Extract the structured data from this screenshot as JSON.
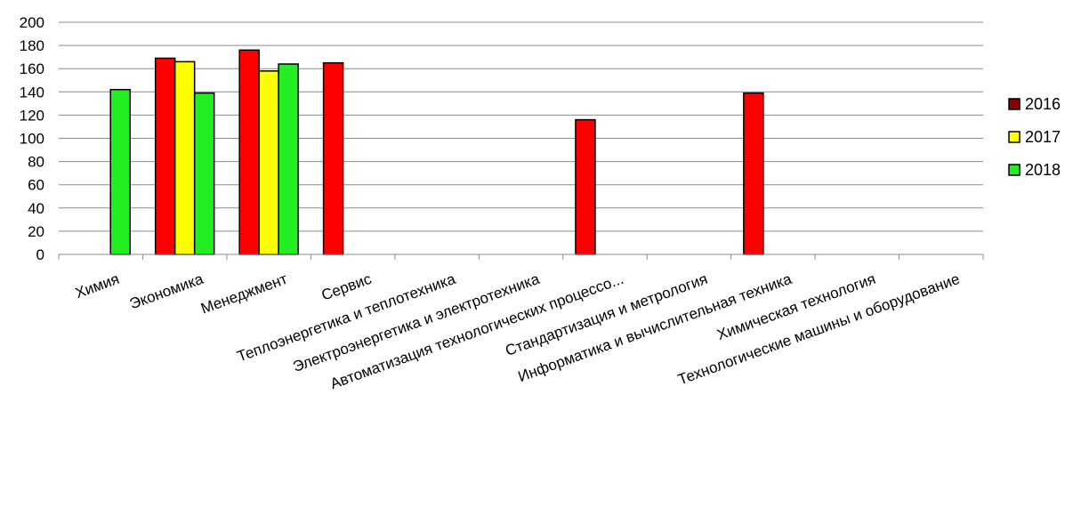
{
  "chart_data": {
    "type": "bar",
    "title": "",
    "xlabel": "",
    "ylabel": "",
    "ylim": [
      0,
      200
    ],
    "yticks": [
      0,
      20,
      40,
      60,
      80,
      100,
      120,
      140,
      160,
      180,
      200
    ],
    "grid": true,
    "legend": "right",
    "categories": [
      "Химия",
      "Экономика",
      "Менеджмент",
      "Сервис",
      "Теплоэнергетика и теплотехника",
      "Электроэнергетика и электротехника",
      "Автоматизация технологических процессо...",
      "Стандартизация и метрология",
      "Информатика и вычислительная техника",
      "Химическая технология",
      "Технологические машины и оборудование"
    ],
    "series": [
      {
        "name": "2016",
        "color": "#ff0000",
        "legend_color": "#8b0000",
        "values": [
          null,
          169,
          176,
          165,
          null,
          null,
          116,
          null,
          139,
          null,
          null
        ]
      },
      {
        "name": "2017",
        "color": "#ffff00",
        "legend_color": "#ffff00",
        "values": [
          null,
          166,
          158,
          null,
          null,
          null,
          null,
          null,
          null,
          null,
          null
        ]
      },
      {
        "name": "2018",
        "color": "#22ee22",
        "legend_color": "#22ee22",
        "values": [
          142,
          139,
          164,
          null,
          null,
          null,
          null,
          null,
          null,
          null,
          null
        ]
      }
    ]
  }
}
